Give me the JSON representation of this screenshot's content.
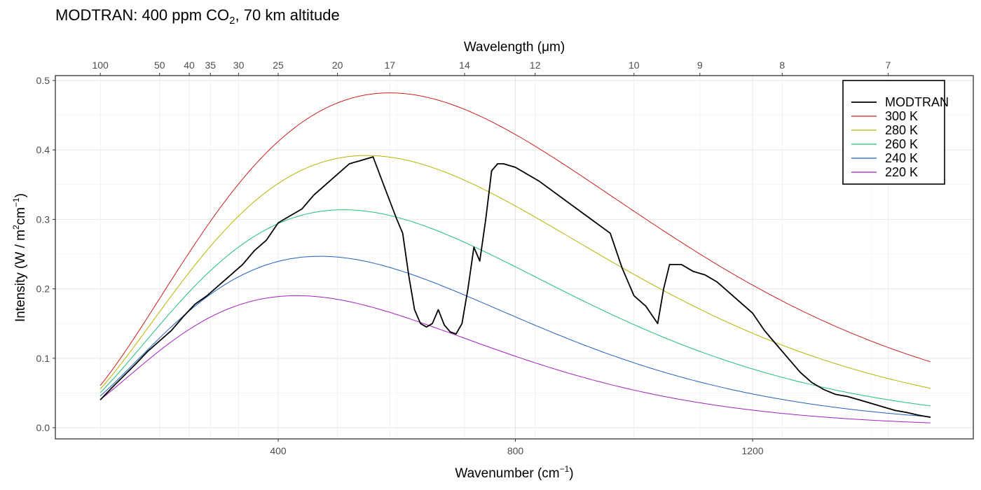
{
  "chart_data": {
    "type": "line",
    "title": {
      "prefix": "MODTRAN: 400 ppm CO",
      "sub": "2",
      "suffix": ", 70 km altitude"
    },
    "xlabel": {
      "prefix": "Wavenumber (cm",
      "sup": "−1",
      "suffix": ")"
    },
    "ylabel": {
      "prefix": "Intensity (W / m",
      "sup1": "2",
      "mid": "cm",
      "sup2": "−1",
      "suffix": ")"
    },
    "x2label": {
      "prefix": "Wavelength (",
      "mu": "μ",
      "suffix": "m)"
    },
    "xlim": [
      100,
      1500
    ],
    "ylim": [
      0,
      0.5
    ],
    "x_ticks": [
      400,
      800,
      1200
    ],
    "y_ticks": [
      0.0,
      0.1,
      0.2,
      0.3,
      0.4,
      0.5
    ],
    "y_tick_labels": [
      "0.0",
      "0.1",
      "0.2",
      "0.3",
      "0.4",
      "0.5"
    ],
    "top_axis_ticks_um": [
      100,
      50,
      40,
      35,
      30,
      25,
      20,
      17,
      14,
      12,
      10,
      9,
      8,
      7
    ],
    "grid": true,
    "legend_position": "top-right",
    "series": [
      {
        "name": "MODTRAN",
        "kind": "spectrum",
        "color": "#000000",
        "x": [
          100,
          120,
          140,
          160,
          180,
          200,
          220,
          240,
          260,
          280,
          300,
          320,
          340,
          360,
          380,
          400,
          420,
          440,
          460,
          480,
          500,
          520,
          540,
          560,
          580,
          600,
          610,
          620,
          630,
          640,
          650,
          660,
          670,
          680,
          690,
          700,
          710,
          720,
          730,
          740,
          750,
          760,
          770,
          780,
          800,
          840,
          880,
          920,
          960,
          980,
          1000,
          1020,
          1040,
          1050,
          1060,
          1080,
          1100,
          1120,
          1140,
          1160,
          1180,
          1200,
          1220,
          1240,
          1260,
          1280,
          1300,
          1320,
          1340,
          1360,
          1380,
          1400,
          1420,
          1440,
          1460,
          1480,
          1500
        ],
        "y": [
          0.04,
          0.058,
          0.075,
          0.092,
          0.11,
          0.125,
          0.14,
          0.16,
          0.178,
          0.19,
          0.205,
          0.22,
          0.235,
          0.255,
          0.27,
          0.295,
          0.305,
          0.315,
          0.335,
          0.35,
          0.365,
          0.38,
          0.385,
          0.39,
          0.345,
          0.3,
          0.28,
          0.22,
          0.17,
          0.15,
          0.145,
          0.15,
          0.17,
          0.148,
          0.138,
          0.135,
          0.15,
          0.2,
          0.26,
          0.24,
          0.3,
          0.37,
          0.38,
          0.38,
          0.375,
          0.355,
          0.33,
          0.305,
          0.28,
          0.23,
          0.19,
          0.175,
          0.15,
          0.2,
          0.235,
          0.235,
          0.225,
          0.22,
          0.21,
          0.195,
          0.18,
          0.165,
          0.14,
          0.12,
          0.1,
          0.08,
          0.065,
          0.055,
          0.048,
          0.045,
          0.04,
          0.035,
          0.03,
          0.025,
          0.022,
          0.018,
          0.015
        ]
      },
      {
        "name": "300 K",
        "kind": "planck",
        "T": 300,
        "color": "#cc1f1f"
      },
      {
        "name": "280 K",
        "kind": "planck",
        "T": 280,
        "color": "#b5b400"
      },
      {
        "name": "260 K",
        "kind": "planck",
        "T": 260,
        "color": "#1fbf77"
      },
      {
        "name": "240 K",
        "kind": "planck",
        "T": 240,
        "color": "#1f5fbf"
      },
      {
        "name": "220 K",
        "kind": "planck",
        "T": 220,
        "color": "#a21fbf"
      }
    ]
  }
}
